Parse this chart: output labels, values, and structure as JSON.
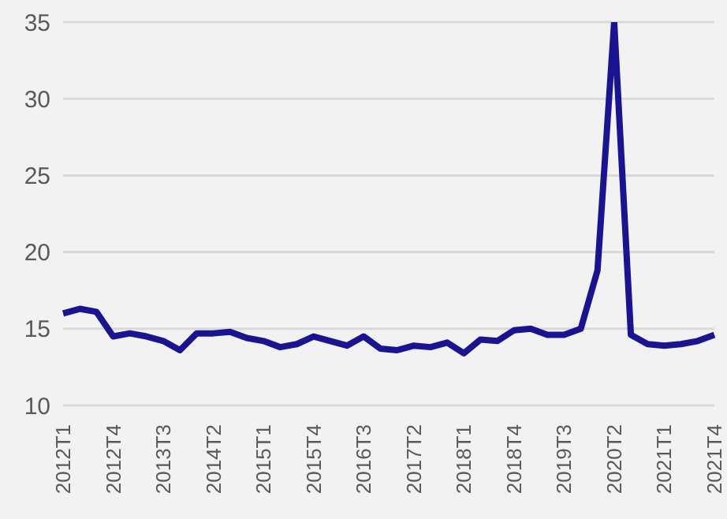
{
  "chart_data": {
    "type": "line",
    "categories": [
      "2012T1",
      null,
      null,
      "2012T4",
      null,
      null,
      "2013T3",
      null,
      null,
      "2014T2",
      null,
      null,
      "2015T1",
      null,
      null,
      "2015T4",
      null,
      null,
      "2016T3",
      null,
      null,
      "2017T2",
      null,
      null,
      "2018T1",
      null,
      null,
      "2018T4",
      null,
      null,
      "2019T3",
      null,
      null,
      "2020T2",
      null,
      null,
      "2021T1",
      null,
      null,
      "2021T4"
    ],
    "series": [
      {
        "color": "#1a1490",
        "values": [
          16.0,
          16.3,
          16.1,
          14.5,
          14.7,
          14.5,
          14.2,
          13.6,
          14.7,
          14.7,
          14.8,
          14.4,
          14.2,
          13.8,
          14.0,
          14.5,
          14.2,
          13.9,
          14.5,
          13.7,
          13.6,
          13.9,
          13.8,
          14.1,
          13.4,
          14.3,
          14.2,
          14.9,
          15.0,
          14.6,
          14.6,
          15.0,
          18.8,
          35.0,
          14.6,
          14.0,
          13.9,
          14.0,
          14.2,
          14.6
        ]
      }
    ],
    "ylim": [
      10,
      35
    ],
    "yticks": [
      10,
      15,
      20,
      25,
      30,
      35
    ],
    "grid": "y",
    "marker": "none",
    "line_style": "solid"
  }
}
